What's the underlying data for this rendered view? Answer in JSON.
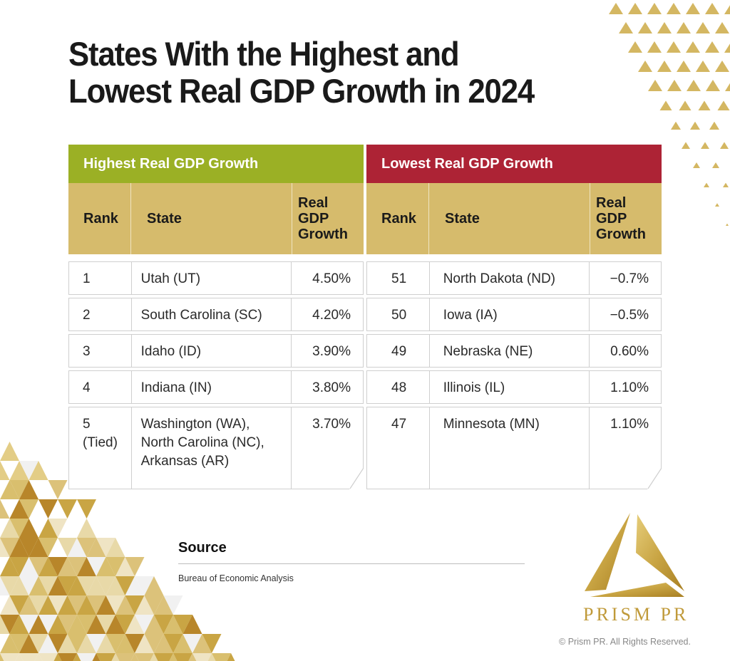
{
  "title": {
    "line1": "States With the Highest and",
    "line2": "Lowest Real GDP Growth in 2024"
  },
  "colors": {
    "highest_band": "#9bb025",
    "lowest_band": "#ad2335",
    "header_gold": "#d6bb6c",
    "accent_gold": "#c09a3a"
  },
  "highest": {
    "heading": "Highest Real GDP Growth",
    "columns": {
      "rank": "Rank",
      "state": "State",
      "growth_l1": "Real",
      "growth_l2": "GDP",
      "growth_l3": "Growth"
    },
    "rows": [
      {
        "rank": "1",
        "rank_note": "",
        "state_l1": "Utah (UT)",
        "state_l2": "",
        "state_l3": "",
        "growth": "4.50%"
      },
      {
        "rank": "2",
        "rank_note": "",
        "state_l1": "South Carolina (SC)",
        "state_l2": "",
        "state_l3": "",
        "growth": "4.20%"
      },
      {
        "rank": "3",
        "rank_note": "",
        "state_l1": "Idaho (ID)",
        "state_l2": "",
        "state_l3": "",
        "growth": "3.90%"
      },
      {
        "rank": "4",
        "rank_note": "",
        "state_l1": "Indiana (IN)",
        "state_l2": "",
        "state_l3": "",
        "growth": "3.80%"
      },
      {
        "rank": "5",
        "rank_note": "(Tied)",
        "state_l1": "Washington (WA),",
        "state_l2": "North Carolina (NC),",
        "state_l3": "Arkansas (AR)",
        "growth": "3.70%"
      }
    ]
  },
  "lowest": {
    "heading": "Lowest Real GDP Growth",
    "columns": {
      "rank": "Rank",
      "state": "State",
      "growth_l1": "Real",
      "growth_l2": "GDP",
      "growth_l3": "Growth"
    },
    "rows": [
      {
        "rank": "51",
        "state": "North Dakota (ND)",
        "growth": "−0.7%"
      },
      {
        "rank": "50",
        "state": "Iowa (IA)",
        "growth": "−0.5%"
      },
      {
        "rank": "49",
        "state": "Nebraska (NE)",
        "growth": "0.60%"
      },
      {
        "rank": "48",
        "state": "Illinois (IL)",
        "growth": "1.10%"
      },
      {
        "rank": "47",
        "state": "Minnesota (MN)",
        "growth": "1.10%"
      }
    ]
  },
  "source": {
    "heading": "Source",
    "text": "Bureau of Economic Analysis"
  },
  "brand": {
    "name": "PRISM PR",
    "copyright": "© Prism PR. All Rights Reserved."
  }
}
